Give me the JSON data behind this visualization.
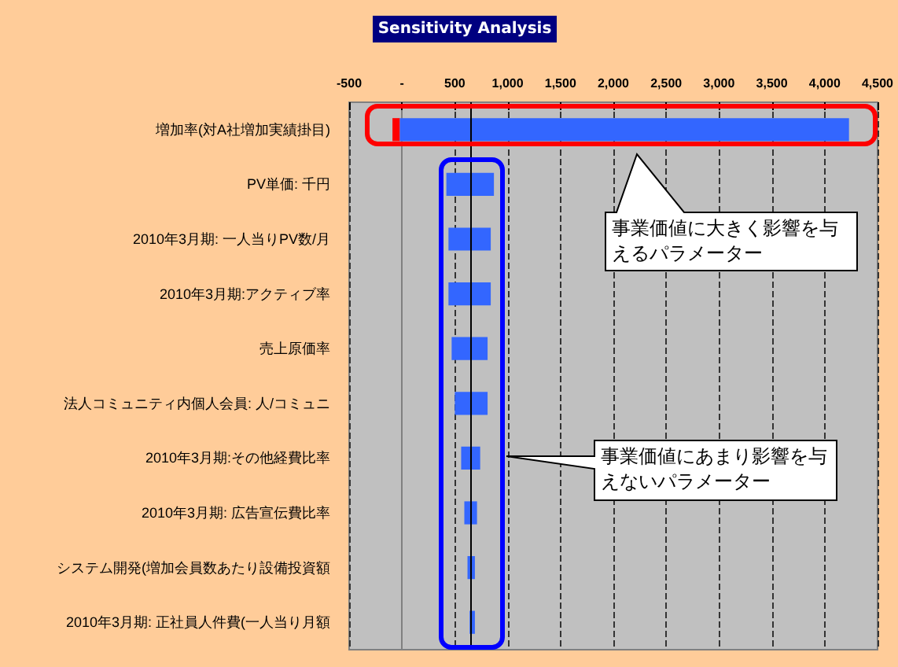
{
  "chart_data": {
    "type": "bar",
    "orientation": "horizontal",
    "title": "Sensitivity Analysis",
    "categories": [
      "増加率(対A社増加実績掛目)",
      "PV単価: 千円",
      "2010年3月期: 一人当りPV数/月",
      "2010年3月期:アクティブ率",
      "売上原価率",
      "法人コミュニティ内個人会員: 人/コミュニ",
      "2010年3月期:その他経費比率",
      "2010年3月期: 広告宣伝費比率",
      "システム開発(増加会員数あたり設備投資額",
      "2010年3月期: 正社員人件費(一人当り月額"
    ],
    "series": [
      {
        "color": "#ff0000",
        "base": [
          -90,
          null,
          null,
          null,
          null,
          null,
          null,
          null,
          null,
          null
        ],
        "values": [
          70,
          null,
          null,
          null,
          null,
          null,
          null,
          null,
          null,
          null
        ]
      },
      {
        "color": "#3366ff",
        "base": [
          -20,
          420,
          440,
          440,
          470,
          500,
          560,
          590,
          620,
          640
        ],
        "values": [
          4250,
          450,
          400,
          400,
          340,
          310,
          180,
          120,
          70,
          50
        ]
      }
    ],
    "xlim": [
      -500,
      4500
    ],
    "xticks": [
      -500,
      {
        "value": 0,
        "label": "-"
      },
      500,
      {
        "value": 1000,
        "label": "1,000"
      },
      {
        "value": 1500,
        "label": "1,500"
      },
      {
        "value": 2000,
        "label": "2,000"
      },
      {
        "value": 2500,
        "label": "2,500"
      },
      {
        "value": 3000,
        "label": "3,000"
      },
      {
        "value": 3500,
        "label": "3,500"
      },
      {
        "value": 4000,
        "label": "4,000"
      },
      {
        "value": 4500,
        "label": "4,500"
      }
    ],
    "grid": "x",
    "ref_lines": [
      {
        "axis": "x",
        "value": 645,
        "color": "#000000"
      }
    ],
    "annotations": [
      "事業価値に大きく影響を与えるパラメーター",
      "事業価値にあまり影響を与えないパラメーター"
    ]
  }
}
